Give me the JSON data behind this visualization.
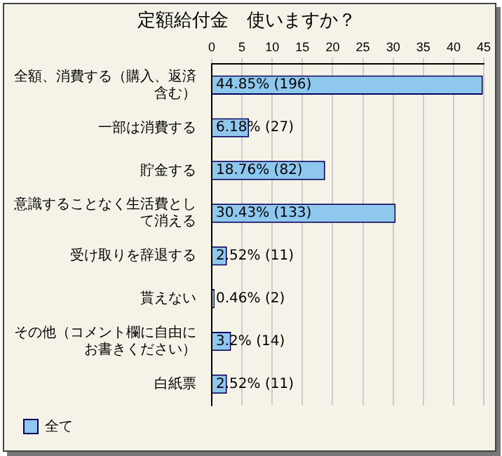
{
  "chart_data": {
    "type": "bar",
    "orientation": "horizontal",
    "title": "定額給付金　使いますか？",
    "categories": [
      "全額、消費する（購入、返済含む）",
      "一部は消費する",
      "貯金する",
      "意識することなく生活費として消える",
      "受け取りを辞退する",
      "貰えない",
      "その他（コメント欄に自由にお書きください）",
      "白紙票"
    ],
    "series": [
      {
        "name": "全て",
        "color": "#8ec8ee",
        "values": [
          44.85,
          6.18,
          18.76,
          30.43,
          2.52,
          0.46,
          3.2,
          2.52
        ],
        "value_labels": [
          "44.85% (196)",
          "6.18% (27)",
          "18.76% (82)",
          "30.43% (133)",
          "2.52% (11)",
          "0.46% (2)",
          "3.2% (14)",
          "2.52% (11)"
        ]
      }
    ],
    "xlim": [
      0,
      45
    ],
    "xticks": [
      0,
      5,
      10,
      15,
      20,
      25,
      30,
      35,
      40,
      45
    ],
    "grid": "x",
    "legend": "bottom left"
  }
}
